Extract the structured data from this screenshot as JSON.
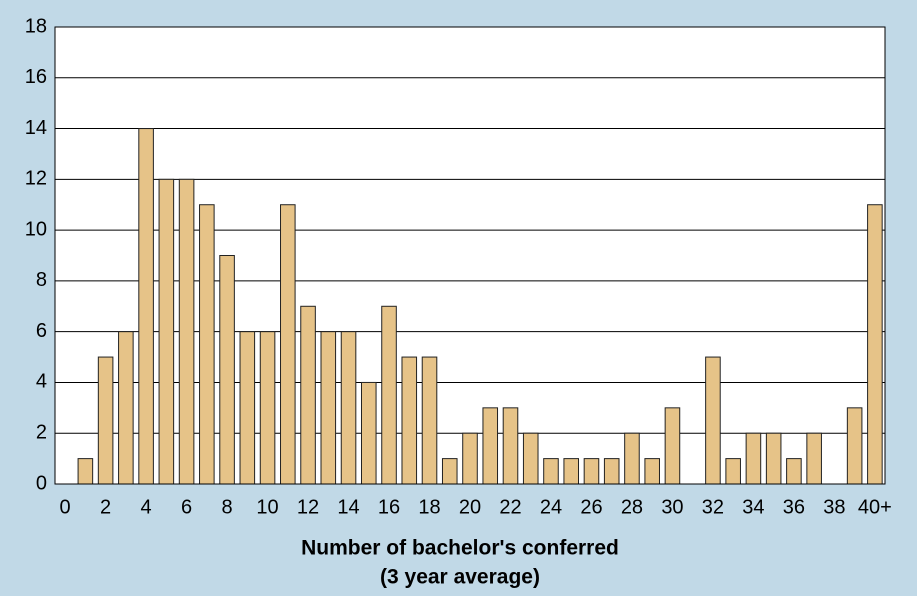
{
  "chart_data": {
    "type": "bar",
    "xlabel": [
      "Number of bachelor's conferred",
      "(3 year average)"
    ],
    "categories": [
      "0",
      null,
      "2",
      null,
      "4",
      null,
      "6",
      null,
      "8",
      null,
      "10",
      null,
      "12",
      null,
      "14",
      null,
      "16",
      null,
      "18",
      null,
      "20",
      null,
      "22",
      null,
      "24",
      null,
      "26",
      null,
      "28",
      null,
      "30",
      null,
      "32",
      null,
      "34",
      null,
      "36",
      null,
      "38",
      null,
      "40+"
    ],
    "values": [
      0,
      1,
      5,
      6,
      14,
      12,
      12,
      11,
      9,
      6,
      6,
      11,
      7,
      6,
      6,
      4,
      7,
      5,
      5,
      1,
      2,
      3,
      3,
      2,
      1,
      1,
      1,
      1,
      2,
      1,
      3,
      0,
      5,
      1,
      2,
      2,
      1,
      2,
      0,
      3,
      11
    ],
    "color": "#e6c388",
    "ylim": [
      0,
      18
    ],
    "yticks": [
      0,
      2,
      4,
      6,
      8,
      10,
      12,
      14,
      16,
      18
    ],
    "grid": true
  }
}
